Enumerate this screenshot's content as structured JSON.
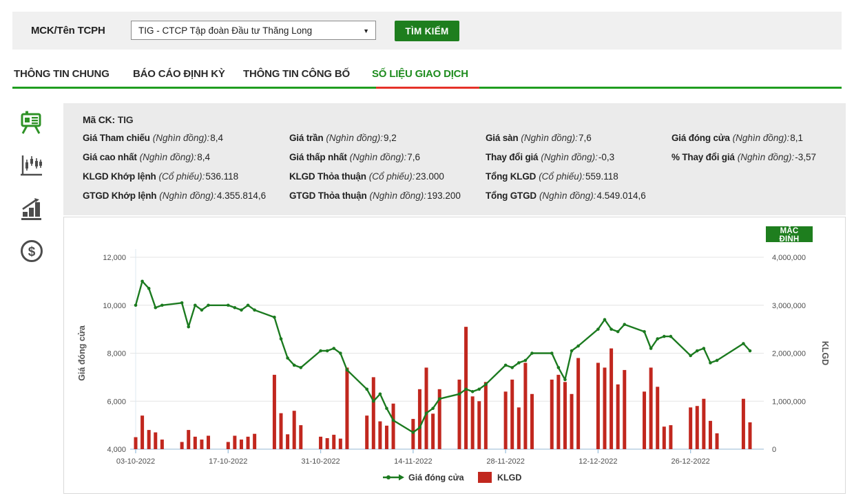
{
  "colors": {
    "green": "#1e7e1e",
    "line_green": "#1b7a1f",
    "bar_red": "#c1271e",
    "tab_underline_green": "#1f9d1f",
    "tab_underline_red": "#e53228",
    "panel_gray": "#ebebeb",
    "topbar_gray": "#f0f0f0"
  },
  "topbar": {
    "label": "MCK/Tên TCPH",
    "select_value": "TIG - CTCP Tập đoàn Đầu tư Thăng Long",
    "caret": "▼",
    "search_label": "TÌM KIẾM"
  },
  "tabs": {
    "items": [
      {
        "label": "THÔNG TIN CHUNG",
        "active": false
      },
      {
        "label": "BÁO CÁO ĐỊNH KỲ",
        "active": false
      },
      {
        "label": "THÔNG TIN CÔNG BỐ",
        "active": false
      },
      {
        "label": "SỐ LIỆU GIAO DỊCH",
        "active": true
      }
    ]
  },
  "sidebar": {
    "icons": [
      {
        "name": "presentation-chart-icon",
        "active": true
      },
      {
        "name": "candlestick-chart-icon",
        "active": false
      },
      {
        "name": "bar-chart-growth-icon",
        "active": false
      },
      {
        "name": "dollar-coin-icon",
        "active": false
      }
    ]
  },
  "info": {
    "ma_ck_label": "Mã CK:",
    "ma_ck_value": "TIG",
    "rows": [
      [
        {
          "label": "Giá Tham chiếu",
          "unit": "(Nghìn đồng):",
          "value": "8,4"
        },
        {
          "label": "Giá trần",
          "unit": "(Nghìn đồng):",
          "value": "9,2"
        },
        {
          "label": "Giá sàn",
          "unit": "(Nghìn đồng):",
          "value": "7,6"
        },
        {
          "label": "Giá đóng cửa",
          "unit": "(Nghìn đồng):",
          "value": "8,1"
        }
      ],
      [
        {
          "label": "Giá cao nhất",
          "unit": "(Nghìn đồng):",
          "value": "8,4"
        },
        {
          "label": "Giá thấp nhất",
          "unit": "(Nghìn đồng):",
          "value": "7,6"
        },
        {
          "label": "Thay đổi giá",
          "unit": "(Nghìn đồng):",
          "value": "-0,3"
        },
        {
          "label": "% Thay đổi giá",
          "unit": "(Nghìn đồng):",
          "value": "-3,57"
        }
      ],
      [
        {
          "label": "KLGD Khớp lệnh",
          "unit": "(Cổ phiếu):",
          "value": "536.118"
        },
        {
          "label": "KLGD Thỏa thuận",
          "unit": "(Cổ phiếu):",
          "value": "23.000"
        },
        {
          "label": "Tổng KLGD",
          "unit": "(Cổ phiếu):",
          "value": "559.118"
        },
        null
      ],
      [
        {
          "label": "GTGD Khớp lệnh",
          "unit": "(Nghìn đồng):",
          "value": "4.355.814,6"
        },
        {
          "label": "GTGD Thỏa thuận",
          "unit": "(Nghìn đồng):",
          "value": "193.200"
        },
        {
          "label": "Tổng GTGD",
          "unit": "(Nghìn đồng):",
          "value": "4.549.014,6"
        },
        null
      ]
    ]
  },
  "chart": {
    "default_button": "MẶC ĐỊNH"
  },
  "chart_data": {
    "type": "combo",
    "title": "",
    "x_dates": [
      "03-10-2022",
      "04-10-2022",
      "05-10-2022",
      "06-10-2022",
      "07-10-2022",
      "10-10-2022",
      "11-10-2022",
      "12-10-2022",
      "13-10-2022",
      "14-10-2022",
      "17-10-2022",
      "18-10-2022",
      "19-10-2022",
      "20-10-2022",
      "21-10-2022",
      "24-10-2022",
      "25-10-2022",
      "26-10-2022",
      "27-10-2022",
      "28-10-2022",
      "31-10-2022",
      "01-11-2022",
      "02-11-2022",
      "03-11-2022",
      "04-11-2022",
      "07-11-2022",
      "08-11-2022",
      "09-11-2022",
      "10-11-2022",
      "11-11-2022",
      "14-11-2022",
      "15-11-2022",
      "16-11-2022",
      "17-11-2022",
      "18-11-2022",
      "21-11-2022",
      "22-11-2022",
      "23-11-2022",
      "24-11-2022",
      "25-11-2022",
      "28-11-2022",
      "29-11-2022",
      "30-11-2022",
      "01-12-2022",
      "02-12-2022",
      "05-12-2022",
      "06-12-2022",
      "07-12-2022",
      "08-12-2022",
      "09-12-2022",
      "12-12-2022",
      "13-12-2022",
      "14-12-2022",
      "15-12-2022",
      "16-12-2022",
      "19-12-2022",
      "20-12-2022",
      "21-12-2022",
      "22-12-2022",
      "23-12-2022",
      "26-12-2022",
      "27-12-2022",
      "28-12-2022",
      "29-12-2022",
      "30-12-2022",
      "03-01-2023",
      "04-01-2023"
    ],
    "series": [
      {
        "name": "Giá đóng cửa",
        "type": "line",
        "axis": "left",
        "color": "#1b7a1f",
        "values": [
          10000,
          11000,
          10700,
          9900,
          10000,
          10100,
          9100,
          10000,
          9800,
          10000,
          10000,
          9900,
          9800,
          10000,
          9800,
          9500,
          8600,
          7800,
          7500,
          7400,
          8100,
          8100,
          8200,
          8000,
          7300,
          6500,
          6000,
          6300,
          5700,
          5200,
          4700,
          4900,
          5500,
          5700,
          6100,
          6300,
          6500,
          6400,
          6500,
          6700,
          7500,
          7400,
          7600,
          7700,
          8000,
          8000,
          7400,
          6900,
          8100,
          8300,
          9000,
          9400,
          9000,
          8900,
          9200,
          8900,
          8200,
          8600,
          8700,
          8700,
          7900,
          8100,
          8200,
          7600,
          7700,
          8400,
          8100
        ]
      },
      {
        "name": "KLGD",
        "type": "bar",
        "axis": "right",
        "color": "#c1271e",
        "values": [
          250000,
          700000,
          400000,
          350000,
          200000,
          150000,
          400000,
          260000,
          200000,
          280000,
          150000,
          280000,
          200000,
          260000,
          320000,
          1550000,
          750000,
          310000,
          800000,
          500000,
          260000,
          230000,
          300000,
          220000,
          1700000,
          700000,
          1500000,
          580000,
          490000,
          950000,
          630000,
          1250000,
          1700000,
          740000,
          1250000,
          1450000,
          2550000,
          1100000,
          1000000,
          1400000,
          1200000,
          1450000,
          870000,
          1800000,
          1150000,
          1450000,
          1550000,
          1400000,
          1150000,
          1900000,
          1800000,
          1700000,
          2100000,
          1350000,
          1650000,
          1200000,
          1700000,
          1300000,
          470000,
          500000,
          870000,
          900000,
          1050000,
          590000,
          330000,
          1050000,
          559118
        ]
      }
    ],
    "left_axis": {
      "label": "Giá đóng cửa",
      "min": 4000,
      "max": 12000,
      "tick_labels": [
        "12,000",
        "10,000",
        "8,000",
        "6,000",
        "4,000"
      ]
    },
    "right_axis": {
      "label": "KLGD",
      "min": 0,
      "max": 4000000,
      "tick_labels": [
        "4,000,000",
        "3,000,000",
        "2,000,000",
        "1,000,000",
        "0"
      ]
    },
    "x_tick_labels": [
      "03-10-2022",
      "17-10-2022",
      "31-10-2022",
      "14-11-2022",
      "28-11-2022",
      "12-12-2022",
      "26-12-2022"
    ],
    "legend": [
      "Giá đóng cửa",
      "KLGD"
    ],
    "legend_position": "bottom-center",
    "grid": true
  }
}
